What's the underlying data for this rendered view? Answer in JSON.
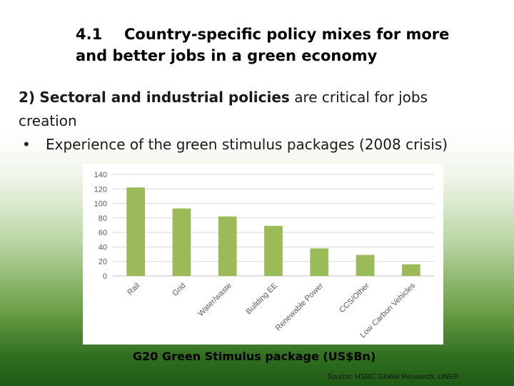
{
  "slide": {
    "title_number": "4.1",
    "title_line1": "Country-specific policy mixes for more",
    "title_line2": "and better jobs in a green economy",
    "point_number": "2)",
    "point_bold": "Sectoral and industrial policies",
    "point_rest": "are critical for jobs",
    "point_line2": "creation",
    "bullet_symbol": "•",
    "bullet_text": "Experience of the green stimulus packages (2008 crisis)",
    "caption": "G20 Green Stimulus package (US$Bn)",
    "source_label": "Source",
    "source_text": ": HSBC Global Research, UNEP"
  },
  "colors": {
    "bar": "#9bbb59",
    "grid": "#d9d9d9",
    "axis_text": "#595959"
  },
  "chart_data": {
    "type": "bar",
    "categories": [
      "Rail",
      "Grid",
      "Water/waste",
      "Building EE",
      "Renewable Power",
      "CCS/Other",
      "Low Carbon Vehicles"
    ],
    "values": [
      122,
      93,
      82,
      69,
      38,
      29,
      16
    ],
    "yticks": [
      0,
      20,
      40,
      60,
      80,
      100,
      120,
      140
    ],
    "ylim": [
      0,
      140
    ],
    "grid": true,
    "legend": "none",
    "title": "",
    "xlabel": "",
    "ylabel": ""
  }
}
